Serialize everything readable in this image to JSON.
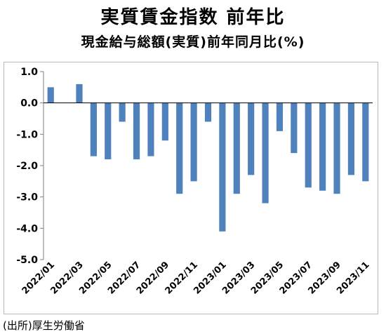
{
  "title": "実質賃金指数 前年比",
  "subtitle": "現金給与総額(実質)前年同月比(%)",
  "source": "(出所)厚生労働省",
  "colors": {
    "bar": "#4f81bd",
    "axis": "#808080",
    "grid": "#000000"
  },
  "chart_data": {
    "type": "bar",
    "title": "実質賃金指数 前年比",
    "subtitle": "現金給与総額(実質)前年同月比(%)",
    "categories": [
      "2022/01",
      "2022/02",
      "2022/03",
      "2022/04",
      "2022/05",
      "2022/06",
      "2022/07",
      "2022/08",
      "2022/09",
      "2022/10",
      "2022/11",
      "2022/12",
      "2023/01",
      "2023/02",
      "2023/03",
      "2023/04",
      "2023/05",
      "2023/06",
      "2023/07",
      "2023/08",
      "2023/09",
      "2023/10",
      "2023/11"
    ],
    "tick_labels": [
      "2022/01",
      "2022/03",
      "2022/05",
      "2022/07",
      "2022/09",
      "2022/11",
      "2023/01",
      "2023/03",
      "2023/05",
      "2023/07",
      "2023/09",
      "2023/11"
    ],
    "values": [
      0.5,
      0.0,
      0.6,
      -1.7,
      -1.8,
      -0.6,
      -1.8,
      -1.7,
      -1.2,
      -2.9,
      -2.5,
      -0.6,
      -4.1,
      -2.9,
      -2.3,
      -3.2,
      -0.9,
      -1.6,
      -2.7,
      -2.8,
      -2.9,
      -2.3,
      -2.5
    ],
    "y_ticks": [
      "1.0",
      "0.0",
      "-1.0",
      "-2.0",
      "-3.0",
      "-4.0",
      "-5.0"
    ],
    "ylim": [
      -5,
      1
    ],
    "xlabel": "",
    "ylabel": "",
    "grid": false,
    "legend": "none"
  }
}
